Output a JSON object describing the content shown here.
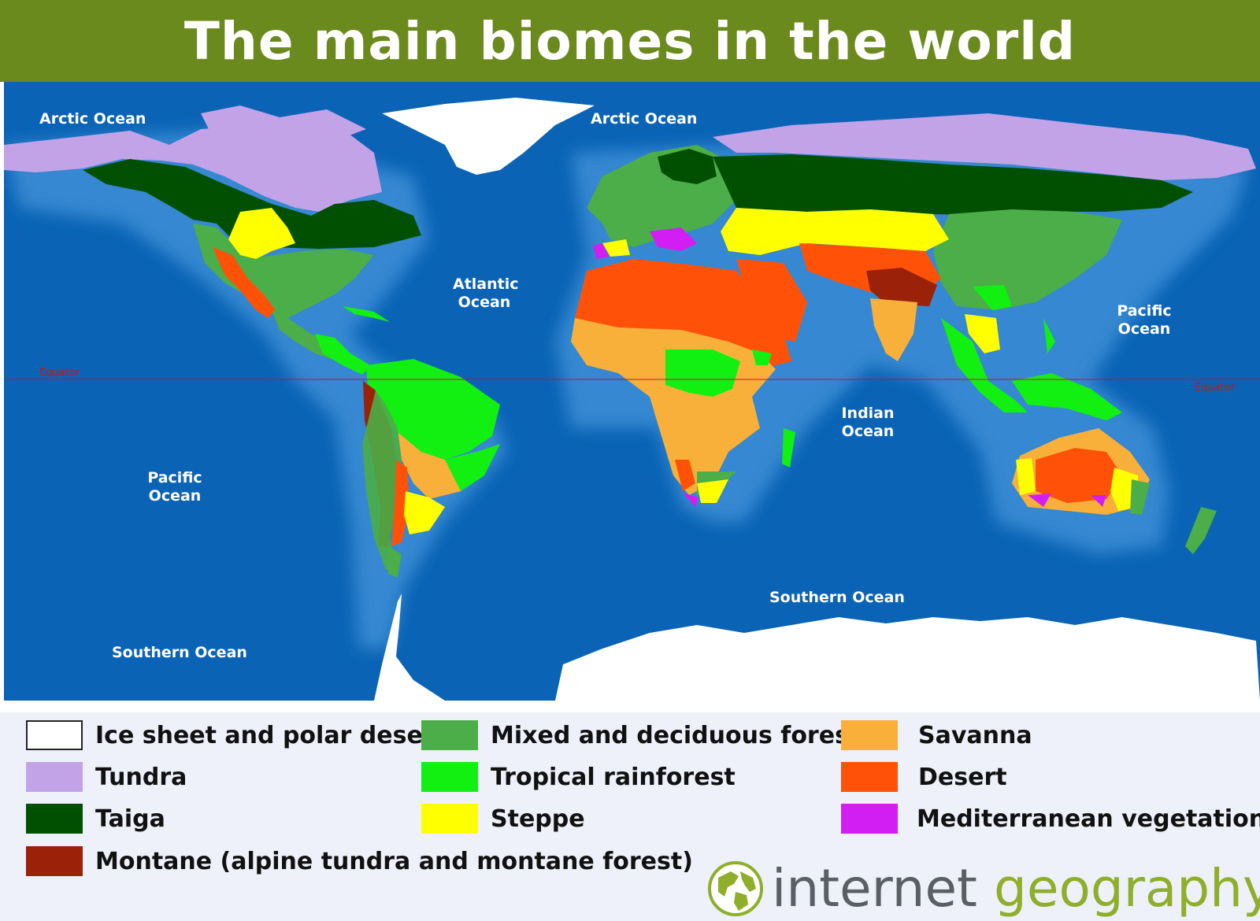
{
  "title": "The main biomes in the world",
  "oceans": [
    {
      "id": "arctic-west",
      "label": "Arctic Ocean"
    },
    {
      "id": "arctic-east",
      "label": "Arctic Ocean"
    },
    {
      "id": "atlantic",
      "label": "Atlantic\nOcean"
    },
    {
      "id": "pacific-east",
      "label": "Pacific\nOcean"
    },
    {
      "id": "pacific-west",
      "label": "Pacific\nOcean"
    },
    {
      "id": "indian",
      "label": "Indian\nOcean"
    },
    {
      "id": "southern-east",
      "label": "Southern Ocean"
    },
    {
      "id": "southern-west",
      "label": "Southern Ocean"
    }
  ],
  "equator": {
    "left_label": "Equator",
    "right_label": "Equator"
  },
  "legend": [
    {
      "label": "Ice sheet and polar desert",
      "color": "#ffffff"
    },
    {
      "label": "Mixed and deciduous forest",
      "color": "#4bae48"
    },
    {
      "label": "Savanna",
      "color": "#f8b03a"
    },
    {
      "label": "Tundra",
      "color": "#c3a3e8"
    },
    {
      "label": "Tropical rainforest",
      "color": "#12f012"
    },
    {
      "label": "Desert",
      "color": "#ff5208"
    },
    {
      "label": "Taiga",
      "color": "#015001"
    },
    {
      "label": "Steppe",
      "color": "#ffff00"
    },
    {
      "label": "Mediterranean vegetation",
      "color": "#d21ef2"
    },
    {
      "label": "Montane (alpine tundra and montane forest)",
      "color": "#9b2108"
    }
  ],
  "branding": {
    "part1": "internet",
    "part2": "geography",
    "icon": "globe-icon"
  },
  "colors": {
    "header": "#6b8a1e",
    "ocean": "#0a63b5",
    "ice": "#ffffff",
    "tundra": "#c3a3e8",
    "taiga": "#015001",
    "mixed_forest": "#4bae48",
    "rainforest": "#12f012",
    "steppe": "#ffff00",
    "savanna": "#f8b03a",
    "desert": "#ff5208",
    "mediterranean": "#d21ef2",
    "montane": "#9b2108",
    "equator": "#cc1414"
  }
}
